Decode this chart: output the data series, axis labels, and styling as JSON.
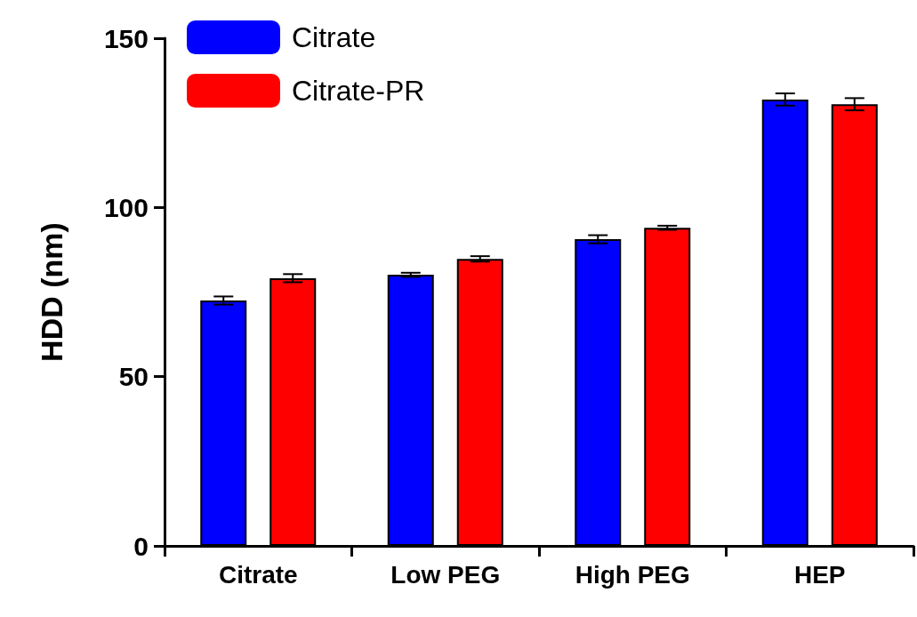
{
  "chart_data": {
    "type": "bar",
    "ylabel": "HDD (nm)",
    "categories": [
      "Citrate",
      "Low PEG",
      "High PEG",
      "HEP"
    ],
    "series": [
      {
        "name": "Citrate",
        "color": "#0000ff",
        "values": [
          72.5,
          80.1,
          90.6,
          131.9
        ],
        "errors": [
          1.2,
          0.6,
          1.2,
          1.8
        ]
      },
      {
        "name": "Citrate-PR",
        "color": "#ff0000",
        "values": [
          79.1,
          84.8,
          94.0,
          130.5
        ],
        "errors": [
          1.2,
          0.8,
          0.6,
          1.8
        ]
      }
    ],
    "ylim": [
      0,
      150
    ],
    "yticks": [
      0,
      50,
      100,
      150
    ],
    "grid": false,
    "legend": "top left"
  }
}
